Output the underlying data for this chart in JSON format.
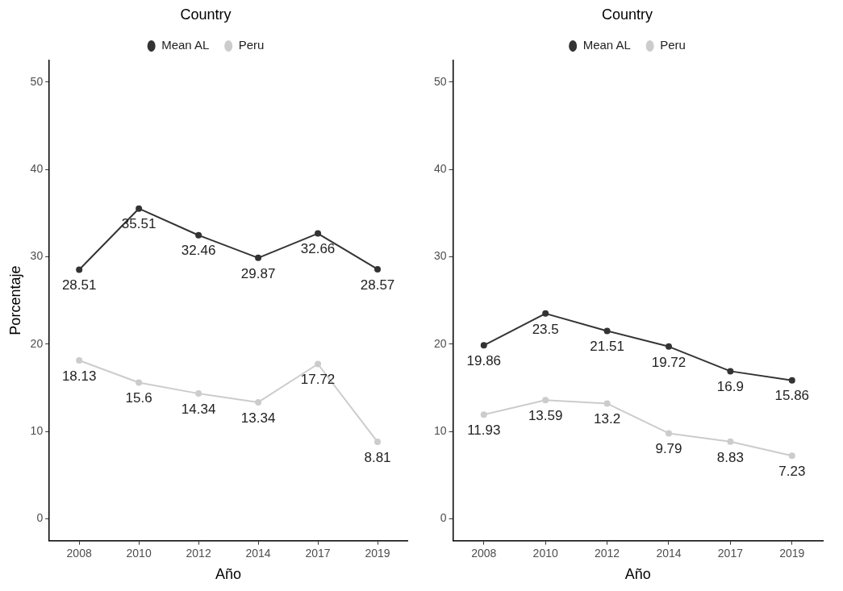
{
  "chart_data": [
    {
      "type": "line",
      "legend_title": "Country",
      "legend": "top",
      "marker": "circle",
      "data_labels": true,
      "grid": false,
      "xlabel": "Año",
      "ylabel": "Porcentaje",
      "categories": [
        "2008",
        "2010",
        "2012",
        "2014",
        "2017",
        "2019"
      ],
      "ylim": [
        -2.5,
        52.5
      ],
      "yticks": [
        0,
        10,
        20,
        30,
        40,
        50
      ],
      "series": [
        {
          "name": "Mean AL",
          "color": "#333333",
          "values": [
            28.51,
            35.51,
            32.46,
            29.87,
            32.66,
            28.57
          ]
        },
        {
          "name": "Peru",
          "color": "#cccccc",
          "values": [
            18.13,
            15.6,
            14.34,
            13.34,
            17.72,
            8.81
          ]
        }
      ]
    },
    {
      "type": "line",
      "legend_title": "Country",
      "legend": "top",
      "marker": "circle",
      "data_labels": true,
      "grid": false,
      "xlabel": "Año",
      "categories": [
        "2008",
        "2010",
        "2012",
        "2014",
        "2017",
        "2019"
      ],
      "ylim": [
        -2.5,
        52.5
      ],
      "yticks": [
        0,
        10,
        20,
        30,
        40,
        50
      ],
      "series": [
        {
          "name": "Mean AL",
          "color": "#333333",
          "values": [
            19.86,
            23.5,
            21.51,
            19.72,
            16.9,
            15.86
          ]
        },
        {
          "name": "Peru",
          "color": "#cccccc",
          "values": [
            11.93,
            13.59,
            13.2,
            9.79,
            8.83,
            7.23
          ]
        }
      ]
    }
  ]
}
